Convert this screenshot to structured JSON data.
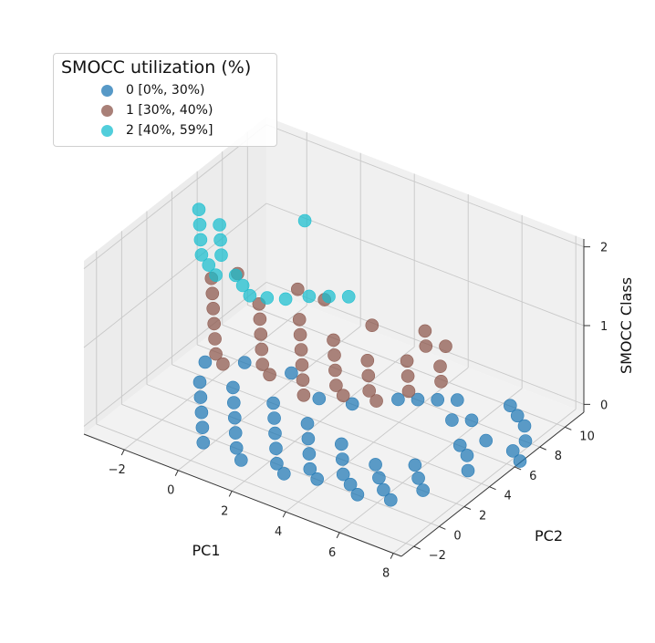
{
  "chart_data": {
    "type": "scatter3d",
    "title": "",
    "xlabel": "PC1",
    "ylabel": "PC2",
    "zlabel": "SMOCC Class",
    "xlim": [
      -3.5,
      8.3
    ],
    "ylim": [
      -3,
      11.5
    ],
    "zlim": [
      -0.1,
      2.1
    ],
    "xticks": [
      "−2",
      "0",
      "2",
      "4",
      "6",
      "8"
    ],
    "yticks": [
      "−2",
      "0",
      "2",
      "4",
      "6",
      "8",
      "10"
    ],
    "zticks": [
      "0",
      "1",
      "2"
    ],
    "legend": {
      "title": "SMOCC utilization (%)",
      "location": "upper-left",
      "entries": [
        {
          "label": "0 [0%, 30%)",
          "color": "#1f77b4"
        },
        {
          "label": "1 [30%, 40%)",
          "color": "#8c564b"
        },
        {
          "label": "2 [40%, 59%]",
          "color": "#17becf"
        }
      ]
    },
    "series": [
      {
        "name": "0 [0%, 30%)",
        "class": 0,
        "color": "#1f77b4",
        "points": [
          [
            -2.5,
            4.5
          ],
          [
            -2.0,
            3.0
          ],
          [
            -1.5,
            2.0
          ],
          [
            -1.0,
            1.0
          ],
          [
            -0.5,
            0.0
          ],
          [
            0.0,
            -1.0
          ],
          [
            -1.0,
            3.5
          ],
          [
            -0.5,
            2.5
          ],
          [
            0.0,
            1.5
          ],
          [
            0.5,
            0.5
          ],
          [
            1.0,
            -0.5
          ],
          [
            1.5,
            -1.2
          ],
          [
            0.5,
            3.5
          ],
          [
            1.0,
            2.5
          ],
          [
            1.5,
            1.5
          ],
          [
            2.0,
            0.5
          ],
          [
            2.5,
            -0.5
          ],
          [
            3.0,
            -1.0
          ],
          [
            2.0,
            3.0
          ],
          [
            2.5,
            2.0
          ],
          [
            3.0,
            1.0
          ],
          [
            3.5,
            0.0
          ],
          [
            4.0,
            -0.5
          ],
          [
            3.5,
            2.5
          ],
          [
            4.0,
            1.5
          ],
          [
            4.5,
            0.5
          ],
          [
            5.0,
            0.0
          ],
          [
            5.5,
            -0.5
          ],
          [
            5.0,
            2.0
          ],
          [
            5.5,
            1.2
          ],
          [
            6.0,
            0.5
          ],
          [
            6.5,
            0.0
          ],
          [
            6.0,
            3.0
          ],
          [
            6.5,
            2.2
          ],
          [
            7.0,
            1.5
          ],
          [
            7.5,
            4.0
          ],
          [
            7.0,
            5.0
          ],
          [
            8.0,
            6.5
          ],
          [
            8.0,
            7.5
          ],
          [
            7.5,
            8.5
          ],
          [
            7.0,
            9.0
          ],
          [
            6.5,
            9.5
          ],
          [
            4.0,
            7.5
          ],
          [
            4.5,
            8.0
          ],
          [
            5.0,
            8.5
          ],
          [
            3.5,
            7.0
          ],
          [
            5.5,
            7.0
          ],
          [
            6.0,
            7.5
          ],
          [
            1.5,
            5.0
          ],
          [
            2.5,
            5.5
          ],
          [
            -1.5,
            5.5
          ],
          [
            0.0,
            6.0
          ],
          [
            6.5,
            5.5
          ],
          [
            7.0,
            6.5
          ],
          [
            8.5,
            6.0
          ]
        ]
      },
      {
        "name": "1 [30%, 40%)",
        "class": 1,
        "color": "#8c564b",
        "points": [
          [
            -2.5,
            5.0
          ],
          [
            -2.0,
            4.0
          ],
          [
            -1.5,
            3.0
          ],
          [
            -1.0,
            2.0
          ],
          [
            -0.5,
            1.0
          ],
          [
            0.0,
            0.0
          ],
          [
            0.5,
            -0.5
          ],
          [
            -0.5,
            4.5
          ],
          [
            0.0,
            3.5
          ],
          [
            0.5,
            2.5
          ],
          [
            1.0,
            1.5
          ],
          [
            1.5,
            0.5
          ],
          [
            2.0,
            0.0
          ],
          [
            1.0,
            4.5
          ],
          [
            1.5,
            3.5
          ],
          [
            2.0,
            2.5
          ],
          [
            2.5,
            1.5
          ],
          [
            3.0,
            0.5
          ],
          [
            3.5,
            -0.5
          ],
          [
            2.5,
            4.0
          ],
          [
            3.0,
            3.0
          ],
          [
            3.5,
            2.0
          ],
          [
            4.0,
            1.0
          ],
          [
            4.5,
            0.5
          ],
          [
            4.0,
            3.5
          ],
          [
            4.5,
            2.5
          ],
          [
            5.0,
            1.5
          ],
          [
            5.5,
            1.0
          ],
          [
            5.0,
            4.5
          ],
          [
            5.5,
            3.5
          ],
          [
            6.0,
            2.5
          ],
          [
            6.0,
            5.0
          ],
          [
            6.5,
            4.0
          ],
          [
            5.0,
            6.0
          ],
          [
            4.5,
            7.0
          ],
          [
            5.5,
            6.5
          ],
          [
            1.0,
            6.5
          ],
          [
            3.0,
            6.0
          ],
          [
            -2.0,
            6.0
          ],
          [
            0.0,
            6.5
          ]
        ]
      },
      {
        "name": "2 [40%, 59%]",
        "class": 2,
        "color": "#17becf",
        "points": [
          [
            -2.5,
            4.0
          ],
          [
            -2.0,
            3.0
          ],
          [
            -1.5,
            2.0
          ],
          [
            -1.0,
            1.0
          ],
          [
            -0.5,
            0.5
          ],
          [
            0.0,
            0.0
          ],
          [
            -1.5,
            3.5
          ],
          [
            -1.0,
            2.5
          ],
          [
            -0.5,
            1.5
          ],
          [
            0.5,
            0.5
          ],
          [
            1.0,
            0.0
          ],
          [
            1.5,
            -0.5
          ],
          [
            2.0,
            -0.2
          ],
          [
            2.5,
            0.2
          ],
          [
            3.0,
            1.0
          ],
          [
            3.5,
            1.5
          ],
          [
            4.0,
            2.0
          ],
          [
            0.5,
            6.0
          ]
        ]
      }
    ]
  }
}
